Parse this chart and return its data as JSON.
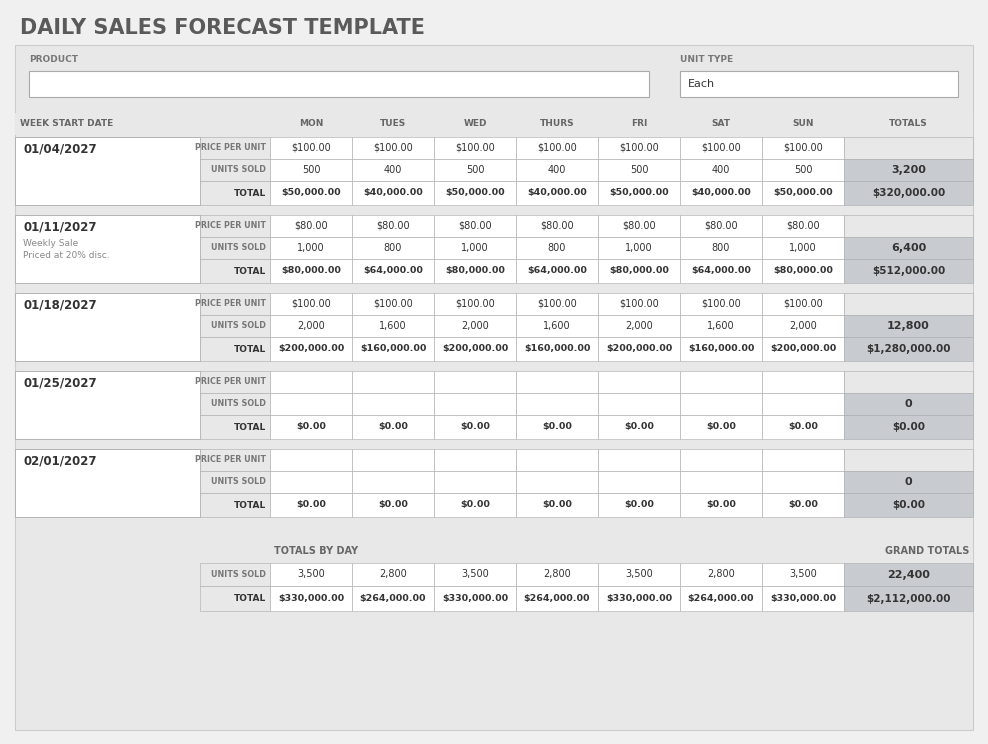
{
  "title": "DAILY SALES FORECAST TEMPLATE",
  "product_label": "PRODUCT",
  "unit_type_label": "UNIT TYPE",
  "unit_type_value": "Each",
  "week_start_date_label": "WEEK START DATE",
  "header_cols": [
    "MON",
    "TUES",
    "WED",
    "THURS",
    "FRI",
    "SAT",
    "SUN",
    "TOTALS"
  ],
  "price_per_unit_label": "PRICE PER UNIT",
  "units_sold_label": "UNITS SOLD",
  "total_label": "TOTAL",
  "totals_by_day_label": "TOTALS BY DAY",
  "grand_totals_label": "GRAND TOTALS",
  "weeks": [
    {
      "date": "01/04/2027",
      "notes": [],
      "price_per_unit": [
        100,
        100,
        100,
        100,
        100,
        100,
        100
      ],
      "units_sold": [
        500,
        400,
        500,
        400,
        500,
        400,
        500
      ],
      "units_total": 3200,
      "totals": [
        50000,
        40000,
        50000,
        40000,
        50000,
        40000,
        50000
      ],
      "grand_total": 320000
    },
    {
      "date": "01/11/2027",
      "notes": [
        "Weekly Sale",
        "Priced at 20% disc."
      ],
      "price_per_unit": [
        80,
        80,
        80,
        80,
        80,
        80,
        80
      ],
      "units_sold": [
        1000,
        800,
        1000,
        800,
        1000,
        800,
        1000
      ],
      "units_total": 6400,
      "totals": [
        80000,
        64000,
        80000,
        64000,
        80000,
        64000,
        80000
      ],
      "grand_total": 512000
    },
    {
      "date": "01/18/2027",
      "notes": [],
      "price_per_unit": [
        100,
        100,
        100,
        100,
        100,
        100,
        100
      ],
      "units_sold": [
        2000,
        1600,
        2000,
        1600,
        2000,
        1600,
        2000
      ],
      "units_total": 12800,
      "totals": [
        200000,
        160000,
        200000,
        160000,
        200000,
        160000,
        200000
      ],
      "grand_total": 1280000
    },
    {
      "date": "01/25/2027",
      "notes": [],
      "price_per_unit": [
        null,
        null,
        null,
        null,
        null,
        null,
        null
      ],
      "units_sold": [
        null,
        null,
        null,
        null,
        null,
        null,
        null
      ],
      "units_total": 0,
      "totals": [
        0,
        0,
        0,
        0,
        0,
        0,
        0
      ],
      "grand_total": 0
    },
    {
      "date": "02/01/2027",
      "notes": [],
      "price_per_unit": [
        null,
        null,
        null,
        null,
        null,
        null,
        null
      ],
      "units_sold": [
        null,
        null,
        null,
        null,
        null,
        null,
        null
      ],
      "units_total": 0,
      "totals": [
        0,
        0,
        0,
        0,
        0,
        0,
        0
      ],
      "grand_total": 0
    }
  ],
  "day_units": [
    3500,
    2800,
    3500,
    2800,
    3500,
    2800,
    3500
  ],
  "day_totals": [
    330000,
    264000,
    330000,
    264000,
    330000,
    264000,
    330000
  ],
  "grand_units": 22400,
  "grand_total": 2112000,
  "bg_outer": "#f0f0f0",
  "bg_panel": "#e8e8e8",
  "bg_white": "#ffffff",
  "bg_shaded": "#c8ccd0",
  "border_color": "#aaaaaa",
  "title_color": "#555555",
  "label_color": "#666666",
  "text_color": "#333333"
}
